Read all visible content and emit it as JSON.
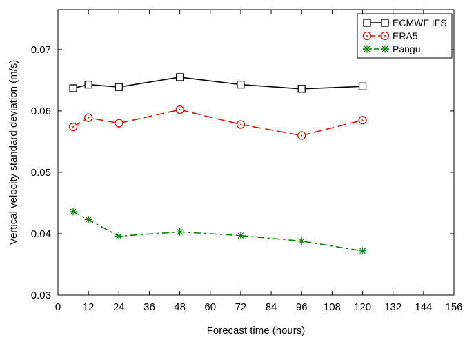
{
  "chart_data": {
    "type": "line",
    "title": "",
    "xlabel": "Forecast time (hours)",
    "ylabel": "Vertical velocity standard deviation (m/s)",
    "xlim": [
      0,
      156
    ],
    "ylim": [
      0.03,
      0.0765
    ],
    "xticks": [
      0,
      12,
      24,
      36,
      48,
      60,
      72,
      84,
      96,
      108,
      120,
      132,
      144,
      156
    ],
    "xtick_labels": [
      "0",
      "12",
      "24",
      "36",
      "48",
      "60",
      "72",
      "84",
      "96",
      "108",
      "120",
      "132",
      "144",
      "156"
    ],
    "yticks": [
      0.03,
      0.04,
      0.05,
      0.06,
      0.07
    ],
    "ytick_labels": [
      "0.03",
      "0.04",
      "0.05",
      "0.06",
      "0.07"
    ],
    "grid": false,
    "legend_position": "top-right",
    "series": [
      {
        "name": "ECMWF IFS",
        "color": "#000000",
        "line_style": "solid",
        "marker": "square",
        "x": [
          6,
          12,
          24,
          48,
          72,
          96,
          120
        ],
        "y": [
          0.0637,
          0.0643,
          0.0639,
          0.0655,
          0.0643,
          0.0636,
          0.064
        ]
      },
      {
        "name": "ERA5",
        "color": "#ff0000",
        "line_style": "dashed",
        "marker": "circle",
        "x": [
          6,
          12,
          24,
          48,
          72,
          96,
          120
        ],
        "y": [
          0.0574,
          0.0589,
          0.058,
          0.0602,
          0.0578,
          0.056,
          0.0585
        ]
      },
      {
        "name": "Pangu",
        "color": "#008000",
        "line_style": "dashdot",
        "marker": "asterisk",
        "x": [
          6,
          12,
          24,
          48,
          72,
          96,
          120
        ],
        "y": [
          0.0436,
          0.0423,
          0.0396,
          0.0403,
          0.0397,
          0.0388,
          0.0372
        ]
      }
    ]
  }
}
